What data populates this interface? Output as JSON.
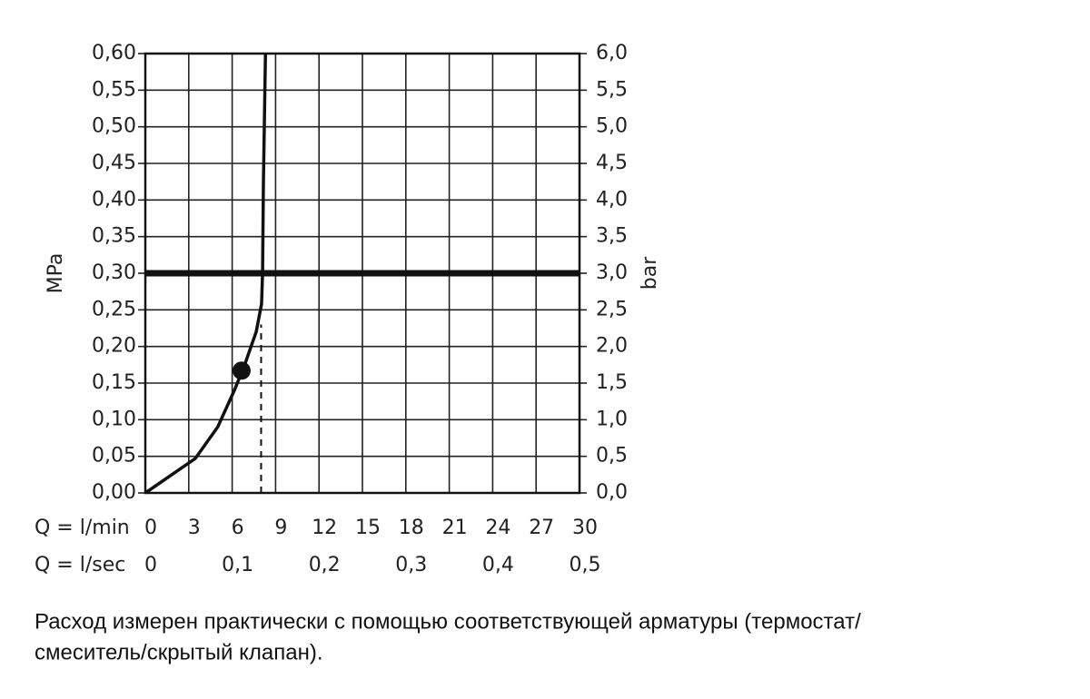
{
  "chart_data": {
    "type": "line",
    "x_prefix": "Q = l/min",
    "x2_prefix": "Q = l/sec",
    "ylabel": "MPa",
    "y2label": "bar",
    "xlim": [
      0,
      30
    ],
    "xticks": [
      0,
      3,
      6,
      9,
      12,
      15,
      18,
      21,
      24,
      27,
      30
    ],
    "x2lim": [
      0,
      0.5
    ],
    "x2ticks": [
      0,
      {
        "value": 0.1,
        "label": "0,1"
      },
      {
        "value": 0.2,
        "label": "0,2"
      },
      {
        "value": 0.3,
        "label": "0,3"
      },
      {
        "value": 0.4,
        "label": "0,4"
      },
      {
        "value": 0.5,
        "label": "0,5"
      }
    ],
    "ylim": [
      0,
      0.6
    ],
    "yticks": [
      {
        "value": 0,
        "label": "0,00"
      },
      {
        "value": 0.05,
        "label": "0,05"
      },
      {
        "value": 0.1,
        "label": "0,10"
      },
      {
        "value": 0.15,
        "label": "0,15"
      },
      {
        "value": 0.2,
        "label": "0,20"
      },
      {
        "value": 0.25,
        "label": "0,25"
      },
      {
        "value": 0.3,
        "label": "0,30"
      },
      {
        "value": 0.35,
        "label": "0,35"
      },
      {
        "value": 0.4,
        "label": "0,40"
      },
      {
        "value": 0.45,
        "label": "0,45"
      },
      {
        "value": 0.5,
        "label": "0,50"
      },
      {
        "value": 0.55,
        "label": "0,55"
      },
      {
        "value": 0.6,
        "label": "0,60"
      }
    ],
    "y2lim": [
      0,
      6
    ],
    "y2ticks": [
      {
        "value": 0,
        "label": "0,0"
      },
      {
        "value": 0.5,
        "label": "0,5"
      },
      {
        "value": 1,
        "label": "1,0"
      },
      {
        "value": 1.5,
        "label": "1,5"
      },
      {
        "value": 2,
        "label": "2,0"
      },
      {
        "value": 2.5,
        "label": "2,5"
      },
      {
        "value": 3,
        "label": "3,0"
      },
      {
        "value": 3.5,
        "label": "3,5"
      },
      {
        "value": 4,
        "label": "4,0"
      },
      {
        "value": 4.5,
        "label": "4,5"
      },
      {
        "value": 5,
        "label": "5,0"
      },
      {
        "value": 5.5,
        "label": "5,5"
      },
      {
        "value": 6,
        "label": "6,0"
      }
    ],
    "grid": true,
    "reference_line": 0.3,
    "marker": {
      "x": 6.65,
      "y": 0.167
    },
    "dashed_line": {
      "x": 8,
      "y": 0.23
    },
    "series": [
      {
        "color": "#111111",
        "x": [
          0,
          3.45,
          5.0,
          6.15,
          6.9,
          7.66,
          8.03,
          8.1,
          8.16,
          8.3
        ],
        "values": [
          0,
          0.047,
          0.09,
          0.14,
          0.177,
          0.22,
          0.258,
          0.3,
          0.425,
          0.6
        ]
      }
    ]
  },
  "caption": [
    "Расход измерен практически с помощью соответствующей арматуры (термостат/",
    "смеситель/скрытый клапан)."
  ]
}
